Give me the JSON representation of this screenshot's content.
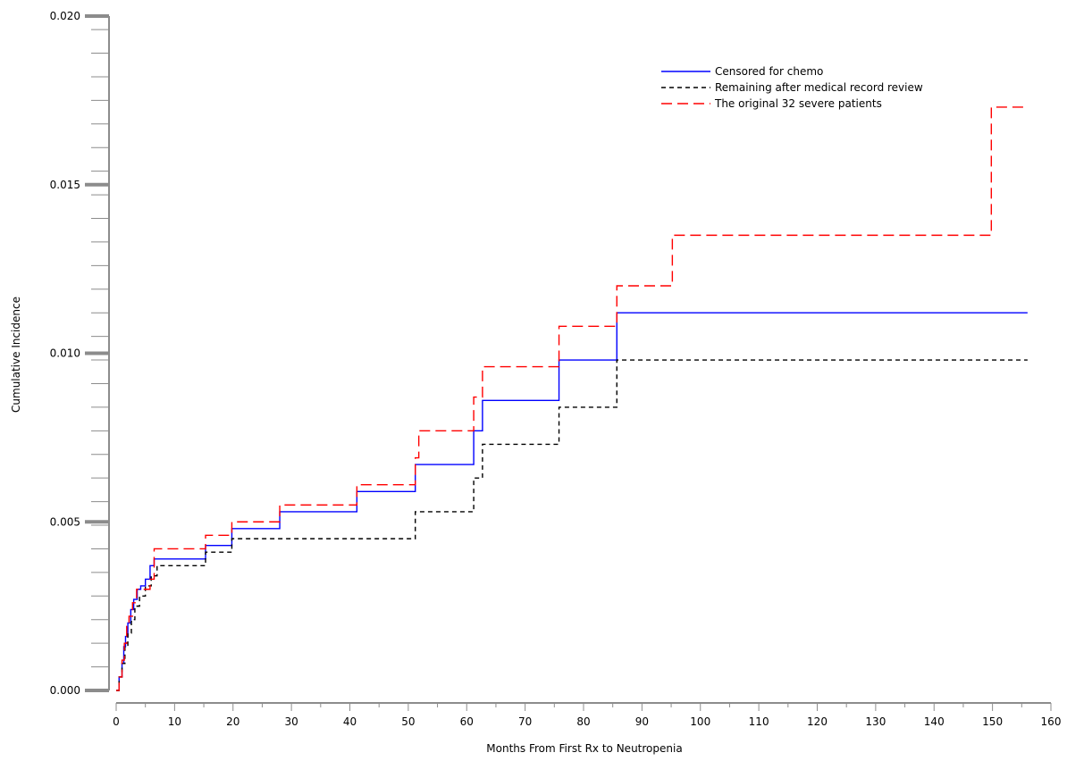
{
  "chart_data": {
    "type": "line",
    "step": true,
    "title": "",
    "xlabel": "Months From First Rx to Neutropenia",
    "ylabel": "Cumulative Incidence",
    "xlim": [
      0,
      160
    ],
    "ylim": [
      0.0,
      0.02
    ],
    "x_ticks": [
      0,
      10,
      20,
      30,
      40,
      50,
      60,
      70,
      80,
      90,
      100,
      110,
      120,
      130,
      140,
      150,
      160
    ],
    "x_tick_labels": [
      "0",
      "10",
      "20",
      "30",
      "40",
      "50",
      "60",
      "70",
      "80",
      "90",
      "100",
      "110",
      "120",
      "130",
      "140",
      "150",
      "160"
    ],
    "y_major_ticks": [
      0.0,
      0.005,
      0.01,
      0.015,
      0.02
    ],
    "y_tick_labels": [
      "0.000",
      "0.005",
      "0.010",
      "0.015",
      "0.020"
    ],
    "y_minor_step": 0.0007,
    "grid": false,
    "legend_position": "top-right",
    "series": [
      {
        "name": "Censored for chemo",
        "color": "#0000ff",
        "dash": "solid",
        "x": [
          0,
          0.5,
          1,
          1.3,
          1.6,
          2,
          2.5,
          3,
          3.6,
          4.2,
          5,
          5.8,
          6.5,
          15.3,
          19.8,
          28,
          41.2,
          51.2,
          61.2,
          62.7,
          75.8,
          85.7,
          156
        ],
        "y": [
          0.0,
          0.0004,
          0.0008,
          0.0013,
          0.0016,
          0.002,
          0.0024,
          0.0027,
          0.003,
          0.0031,
          0.0033,
          0.0037,
          0.0039,
          0.0043,
          0.0048,
          0.0053,
          0.0059,
          0.0067,
          0.0077,
          0.0086,
          0.0098,
          0.0112,
          0.0112
        ]
      },
      {
        "name": "Remaining after medical record review",
        "color": "#000000",
        "dash": "dashed",
        "x": [
          0,
          0.5,
          1,
          1.5,
          2,
          2.6,
          3.2,
          4,
          5,
          6,
          7,
          15.3,
          19.8,
          51.2,
          61.2,
          62.7,
          75.8,
          85.7,
          156
        ],
        "y": [
          0.0,
          0.0004,
          0.0008,
          0.0013,
          0.0017,
          0.0021,
          0.0025,
          0.0028,
          0.0031,
          0.0034,
          0.0037,
          0.0041,
          0.0045,
          0.0053,
          0.0063,
          0.0073,
          0.0084,
          0.0098,
          0.0098
        ]
      },
      {
        "name": "The original 32 severe patients",
        "color": "#ff0000",
        "dash": "longdash",
        "x": [
          0,
          0.5,
          1,
          1.4,
          1.8,
          2.2,
          2.8,
          3.5,
          5.8,
          6.5,
          15.3,
          19.8,
          28,
          41.2,
          51.2,
          51.8,
          61.2,
          62.7,
          75.8,
          85.7,
          95.2,
          149.8,
          156
        ],
        "y": [
          0.0,
          0.0004,
          0.0009,
          0.0014,
          0.0019,
          0.0022,
          0.0026,
          0.003,
          0.0033,
          0.0042,
          0.0046,
          0.005,
          0.0055,
          0.0061,
          0.0069,
          0.0077,
          0.0087,
          0.0096,
          0.0108,
          0.012,
          0.0135,
          0.0173,
          0.0173
        ]
      }
    ]
  }
}
